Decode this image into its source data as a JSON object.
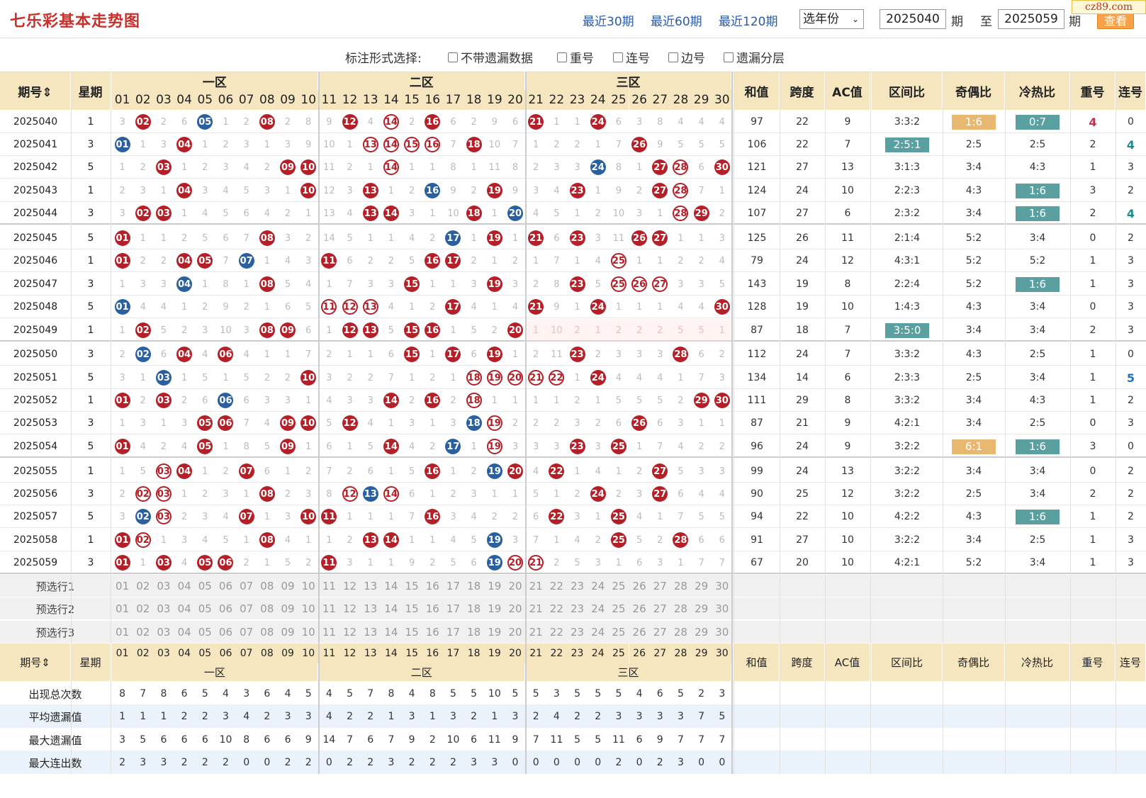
{
  "header": {
    "title": "七乐彩基本走势图",
    "links": [
      "最近30期",
      "最近60期",
      "最近120期"
    ],
    "year_select": "选年份",
    "from_value": "2025040",
    "period_label": "期",
    "to_label": "至",
    "to_value": "2025059",
    "query_label": "查看",
    "logo_text": "cz89.com"
  },
  "options": {
    "label": "标注形式选择:",
    "items": [
      "不带遗漏数据",
      "重号",
      "连号",
      "边号",
      "遗漏分层"
    ]
  },
  "columns": {
    "period": "期号",
    "weekday": "星期",
    "zones": [
      "一区",
      "二区",
      "三区"
    ],
    "sum": "和值",
    "span": "跨度",
    "ac": "AC值",
    "zone_ratio": "区间比",
    "odd_even": "奇偶比",
    "hot_cold": "冷热比",
    "repeat": "重号",
    "consecutive": "连号"
  },
  "numbers": [
    "01",
    "02",
    "03",
    "04",
    "05",
    "06",
    "07",
    "08",
    "09",
    "10",
    "11",
    "12",
    "13",
    "14",
    "15",
    "16",
    "17",
    "18",
    "19",
    "20",
    "21",
    "22",
    "23",
    "24",
    "25",
    "26",
    "27",
    "28",
    "29",
    "30"
  ],
  "rows": [
    {
      "p": "2025040",
      "w": "1",
      "c": "3 F02 2 6 B05 1 2 F08 2 8 9 F12 4 O14 2 F16 6 2 9 6 F21 1 1 F24 6 3 8 4 4 4",
      "sum": "97",
      "span": "22",
      "ac": "9",
      "zr": "3:3:2",
      "oe": "1:6",
      "hc": "0:7",
      "rep": "4",
      "con": "0"
    },
    {
      "p": "2025041",
      "w": "3",
      "c": "B01 1 3 F04 1 2 3 1 3 9 10 1 O13 O14 O15 O16 7 F18 10 7 1 2 2 1 7 F26 9 5 5 5",
      "sum": "106",
      "span": "22",
      "ac": "7",
      "zr": "2:5:1",
      "oe": "2:5",
      "hc": "2:5",
      "rep": "2",
      "con": "4"
    },
    {
      "p": "2025042",
      "w": "5",
      "c": "1 2 F03 1 2 3 4 2 F09 F10 11 2 1 O14 1 1 8 1 11 8 2 3 3 B24 8 1 F27 O28 6 F30",
      "sum": "121",
      "span": "27",
      "ac": "13",
      "zr": "3:1:3",
      "oe": "3:4",
      "hc": "4:3",
      "rep": "1",
      "con": "3"
    },
    {
      "p": "2025043",
      "w": "1",
      "c": "2 3 1 F04 3 4 5 3 1 F10 12 3 F13 1 2 B16 9 2 F19 9 3 4 F23 1 9 2 F27 O28 7 1",
      "sum": "124",
      "span": "24",
      "ac": "10",
      "zr": "2:2:3",
      "oe": "4:3",
      "hc": "1:6",
      "rep": "3",
      "con": "2"
    },
    {
      "p": "2025044",
      "w": "3",
      "c": "3 F02 F03 1 4 5 6 4 2 1 13 4 F13 F14 3 1 10 F18 1 B20 4 5 1 2 10 3 1 O28 F29 2",
      "sum": "107",
      "span": "27",
      "ac": "6",
      "zr": "2:3:2",
      "oe": "3:4",
      "hc": "1:6",
      "rep": "2",
      "con": "4"
    },
    {
      "p": "2025045",
      "w": "5",
      "c": "F01 1 1 2 5 6 7 F08 3 2 14 5 1 1 4 2 B17 1 F19 1 F21 6 F23 3 11 F26 F27 1 1 3",
      "sum": "125",
      "span": "26",
      "ac": "11",
      "zr": "2:1:4",
      "oe": "5:2",
      "hc": "3:4",
      "rep": "0",
      "con": "2"
    },
    {
      "p": "2025046",
      "w": "1",
      "c": "F01 2 2 F04 F05 7 B07 1 4 3 F11 6 2 2 5 F16 F17 2 1 2 1 7 1 4 O25 1 1 2 2 4",
      "sum": "79",
      "span": "24",
      "ac": "12",
      "zr": "4:3:1",
      "oe": "5:2",
      "hc": "5:2",
      "rep": "1",
      "con": "3"
    },
    {
      "p": "2025047",
      "w": "3",
      "c": "1 3 3 B04 1 8 1 F08 5 4 1 7 3 3 F15 1 1 3 F19 3 2 8 F23 5 O25 O26 O27 3 3 5",
      "sum": "143",
      "span": "19",
      "ac": "8",
      "zr": "2:2:4",
      "oe": "5:2",
      "hc": "1:6",
      "rep": "1",
      "con": "3"
    },
    {
      "p": "2025048",
      "w": "5",
      "c": "B01 4 4 1 2 9 2 1 6 5 O11 O12 O13 4 1 2 F17 4 1 4 F21 9 1 F24 1 1 1 4 4 F30",
      "sum": "128",
      "span": "19",
      "ac": "10",
      "zr": "1:4:3",
      "oe": "4:3",
      "hc": "3:4",
      "rep": "0",
      "con": "3"
    },
    {
      "p": "2025049",
      "w": "1",
      "c": "1 F02 5 2 3 10 3 F08 F09 6 1 F12 F13 5 F15 F16 1 5 2 F20 1 10 2 1 2 2 2 5 5 1",
      "sum": "87",
      "span": "18",
      "ac": "7",
      "zr": "3:5:0",
      "oe": "3:4",
      "hc": "3:4",
      "rep": "2",
      "con": "3"
    },
    {
      "p": "2025050",
      "w": "3",
      "c": "2 B02 6 F04 4 F06 4 1 1 7 2 1 1 6 F15 1 F17 6 F19 1 2 11 F23 2 3 3 3 F28 6 2",
      "sum": "112",
      "span": "24",
      "ac": "7",
      "zr": "3:3:2",
      "oe": "4:3",
      "hc": "2:5",
      "rep": "1",
      "con": "0"
    },
    {
      "p": "2025051",
      "w": "5",
      "c": "3 1 B03 1 5 1 5 2 2 F10 3 2 2 7 1 2 1 O18 O19 O20 O21 O22 1 F24 4 4 4 1 7 3",
      "sum": "134",
      "span": "14",
      "ac": "6",
      "zr": "2:3:3",
      "oe": "2:5",
      "hc": "3:4",
      "rep": "1",
      "con": "5"
    },
    {
      "p": "2025052",
      "w": "1",
      "c": "F01 2 F03 2 6 B06 6 3 3 1 4 3 3 F14 2 F16 2 O18 1 1 1 1 2 1 5 5 5 2 F29 F30",
      "sum": "111",
      "span": "29",
      "ac": "8",
      "zr": "3:3:2",
      "oe": "3:4",
      "hc": "4:3",
      "rep": "1",
      "con": "2"
    },
    {
      "p": "2025053",
      "w": "3",
      "c": "1 3 1 3 F05 F06 7 4 F09 F10 5 F12 4 1 3 1 3 B18 O19 2 2 2 3 2 6 F26 6 3 1 1",
      "sum": "87",
      "span": "21",
      "ac": "9",
      "zr": "4:2:1",
      "oe": "3:4",
      "hc": "2:5",
      "rep": "0",
      "con": "3"
    },
    {
      "p": "2025054",
      "w": "5",
      "c": "F01 4 2 4 F05 1 8 5 F09 1 6 1 5 F14 4 2 B17 1 O19 3 3 3 F23 3 F25 1 7 4 2 2",
      "sum": "96",
      "span": "24",
      "ac": "9",
      "zr": "3:2:2",
      "oe": "6:1",
      "hc": "1:6",
      "rep": "3",
      "con": "0"
    },
    {
      "p": "2025055",
      "w": "1",
      "c": "1 5 O03 F04 1 2 F07 6 1 2 7 2 6 1 5 F16 1 2 B19 F20 4 F22 1 4 1 2 F27 5 3 3",
      "sum": "99",
      "span": "24",
      "ac": "13",
      "zr": "3:2:2",
      "oe": "3:4",
      "hc": "3:4",
      "rep": "0",
      "con": "2"
    },
    {
      "p": "2025056",
      "w": "3",
      "c": "2 O02 O03 1 2 3 1 F08 2 3 8 O12 B13 O14 6 1 2 3 1 1 5 1 2 F24 2 3 F27 6 4 4",
      "sum": "90",
      "span": "25",
      "ac": "12",
      "zr": "3:2:2",
      "oe": "2:5",
      "hc": "3:4",
      "rep": "2",
      "con": "2"
    },
    {
      "p": "2025057",
      "w": "5",
      "c": "3 B02 O03 2 3 4 F07 1 3 F10 F11 1 1 1 7 F16 3 4 2 2 6 F22 3 1 F25 4 1 7 5 5",
      "sum": "94",
      "span": "22",
      "ac": "10",
      "zr": "4:2:2",
      "oe": "4:3",
      "hc": "1:6",
      "rep": "1",
      "con": "2"
    },
    {
      "p": "2025058",
      "w": "1",
      "c": "F01 O02 1 3 4 5 1 F08 4 1 1 2 F13 F14 1 1 4 5 B19 3 7 1 4 2 F25 5 2 F28 6 6",
      "sum": "91",
      "span": "27",
      "ac": "10",
      "zr": "3:2:2",
      "oe": "3:4",
      "hc": "2:5",
      "rep": "1",
      "con": "3"
    },
    {
      "p": "2025059",
      "w": "3",
      "c": "F01 1 F03 4 F05 F06 2 1 5 2 F11 3 1 1 9 2 5 6 B19 O20 O21 2 5 3 1 6 3 1 7 7",
      "sum": "67",
      "span": "20",
      "ac": "10",
      "zr": "4:2:1",
      "oe": "5:2",
      "hc": "3:4",
      "rep": "1",
      "con": "3"
    }
  ],
  "highlights": [
    {
      "row": 0,
      "col": "oe",
      "color": "#e8b870"
    },
    {
      "row": 0,
      "col": "hc",
      "color": "#5ba0a0"
    },
    {
      "row": 1,
      "col": "zr",
      "color": "#5ba0a0"
    },
    {
      "row": 3,
      "col": "hc",
      "color": "#5ba0a0"
    },
    {
      "row": 4,
      "col": "hc",
      "color": "#5ba0a0"
    },
    {
      "row": 7,
      "col": "hc",
      "color": "#5ba0a0"
    },
    {
      "row": 9,
      "col": "zr",
      "color": "#5ba0a0"
    },
    {
      "row": 14,
      "col": "oe",
      "color": "#e8b870"
    },
    {
      "row": 14,
      "col": "hc",
      "color": "#5ba0a0"
    },
    {
      "row": 17,
      "col": "hc",
      "color": "#5ba0a0"
    }
  ],
  "colored_counts": [
    {
      "row": 0,
      "col": "rep",
      "color": "#c03050"
    },
    {
      "row": 1,
      "col": "con",
      "color": "#1a8a8a"
    },
    {
      "row": 4,
      "col": "con",
      "color": "#1a8a8a"
    },
    {
      "row": 11,
      "col": "con",
      "color": "#2070c0"
    }
  ],
  "preselect": [
    "预选行1",
    "预选行2",
    "预选行3"
  ],
  "stats": [
    {
      "label": "出现总次数",
      "values": [
        "8",
        "7",
        "8",
        "6",
        "5",
        "4",
        "3",
        "6",
        "4",
        "5",
        "4",
        "5",
        "7",
        "8",
        "4",
        "8",
        "5",
        "5",
        "10",
        "5",
        "5",
        "3",
        "5",
        "5",
        "5",
        "4",
        "6",
        "5",
        "2",
        "3"
      ]
    },
    {
      "label": "平均遗漏值",
      "values": [
        "1",
        "1",
        "1",
        "2",
        "2",
        "3",
        "4",
        "2",
        "3",
        "3",
        "4",
        "2",
        "2",
        "1",
        "3",
        "1",
        "3",
        "2",
        "1",
        "3",
        "2",
        "4",
        "2",
        "2",
        "3",
        "3",
        "3",
        "3",
        "7",
        "5"
      ]
    },
    {
      "label": "最大遗漏值",
      "values": [
        "3",
        "5",
        "6",
        "6",
        "6",
        "10",
        "8",
        "6",
        "6",
        "9",
        "14",
        "7",
        "6",
        "7",
        "9",
        "2",
        "10",
        "6",
        "11",
        "9",
        "7",
        "11",
        "5",
        "5",
        "11",
        "6",
        "9",
        "7",
        "7",
        "7"
      ]
    },
    {
      "label": "最大连出数",
      "values": [
        "2",
        "3",
        "3",
        "2",
        "2",
        "2",
        "0",
        "0",
        "2",
        "2",
        "0",
        "2",
        "2",
        "3",
        "2",
        "2",
        "2",
        "3",
        "3",
        "0",
        "0",
        "0",
        "0",
        "0",
        "2",
        "0",
        "2",
        "3",
        "0",
        "0"
      ]
    }
  ],
  "colors": {
    "header_bg": "#f5e6c0",
    "ball_red": "#b52028",
    "ball_blue": "#2a5fa0",
    "title_red": "#c8302c",
    "link_blue": "#2a5aa8",
    "stat_alt_bg": "#eaf2fb",
    "pre_bg": "#f0f0f0"
  }
}
